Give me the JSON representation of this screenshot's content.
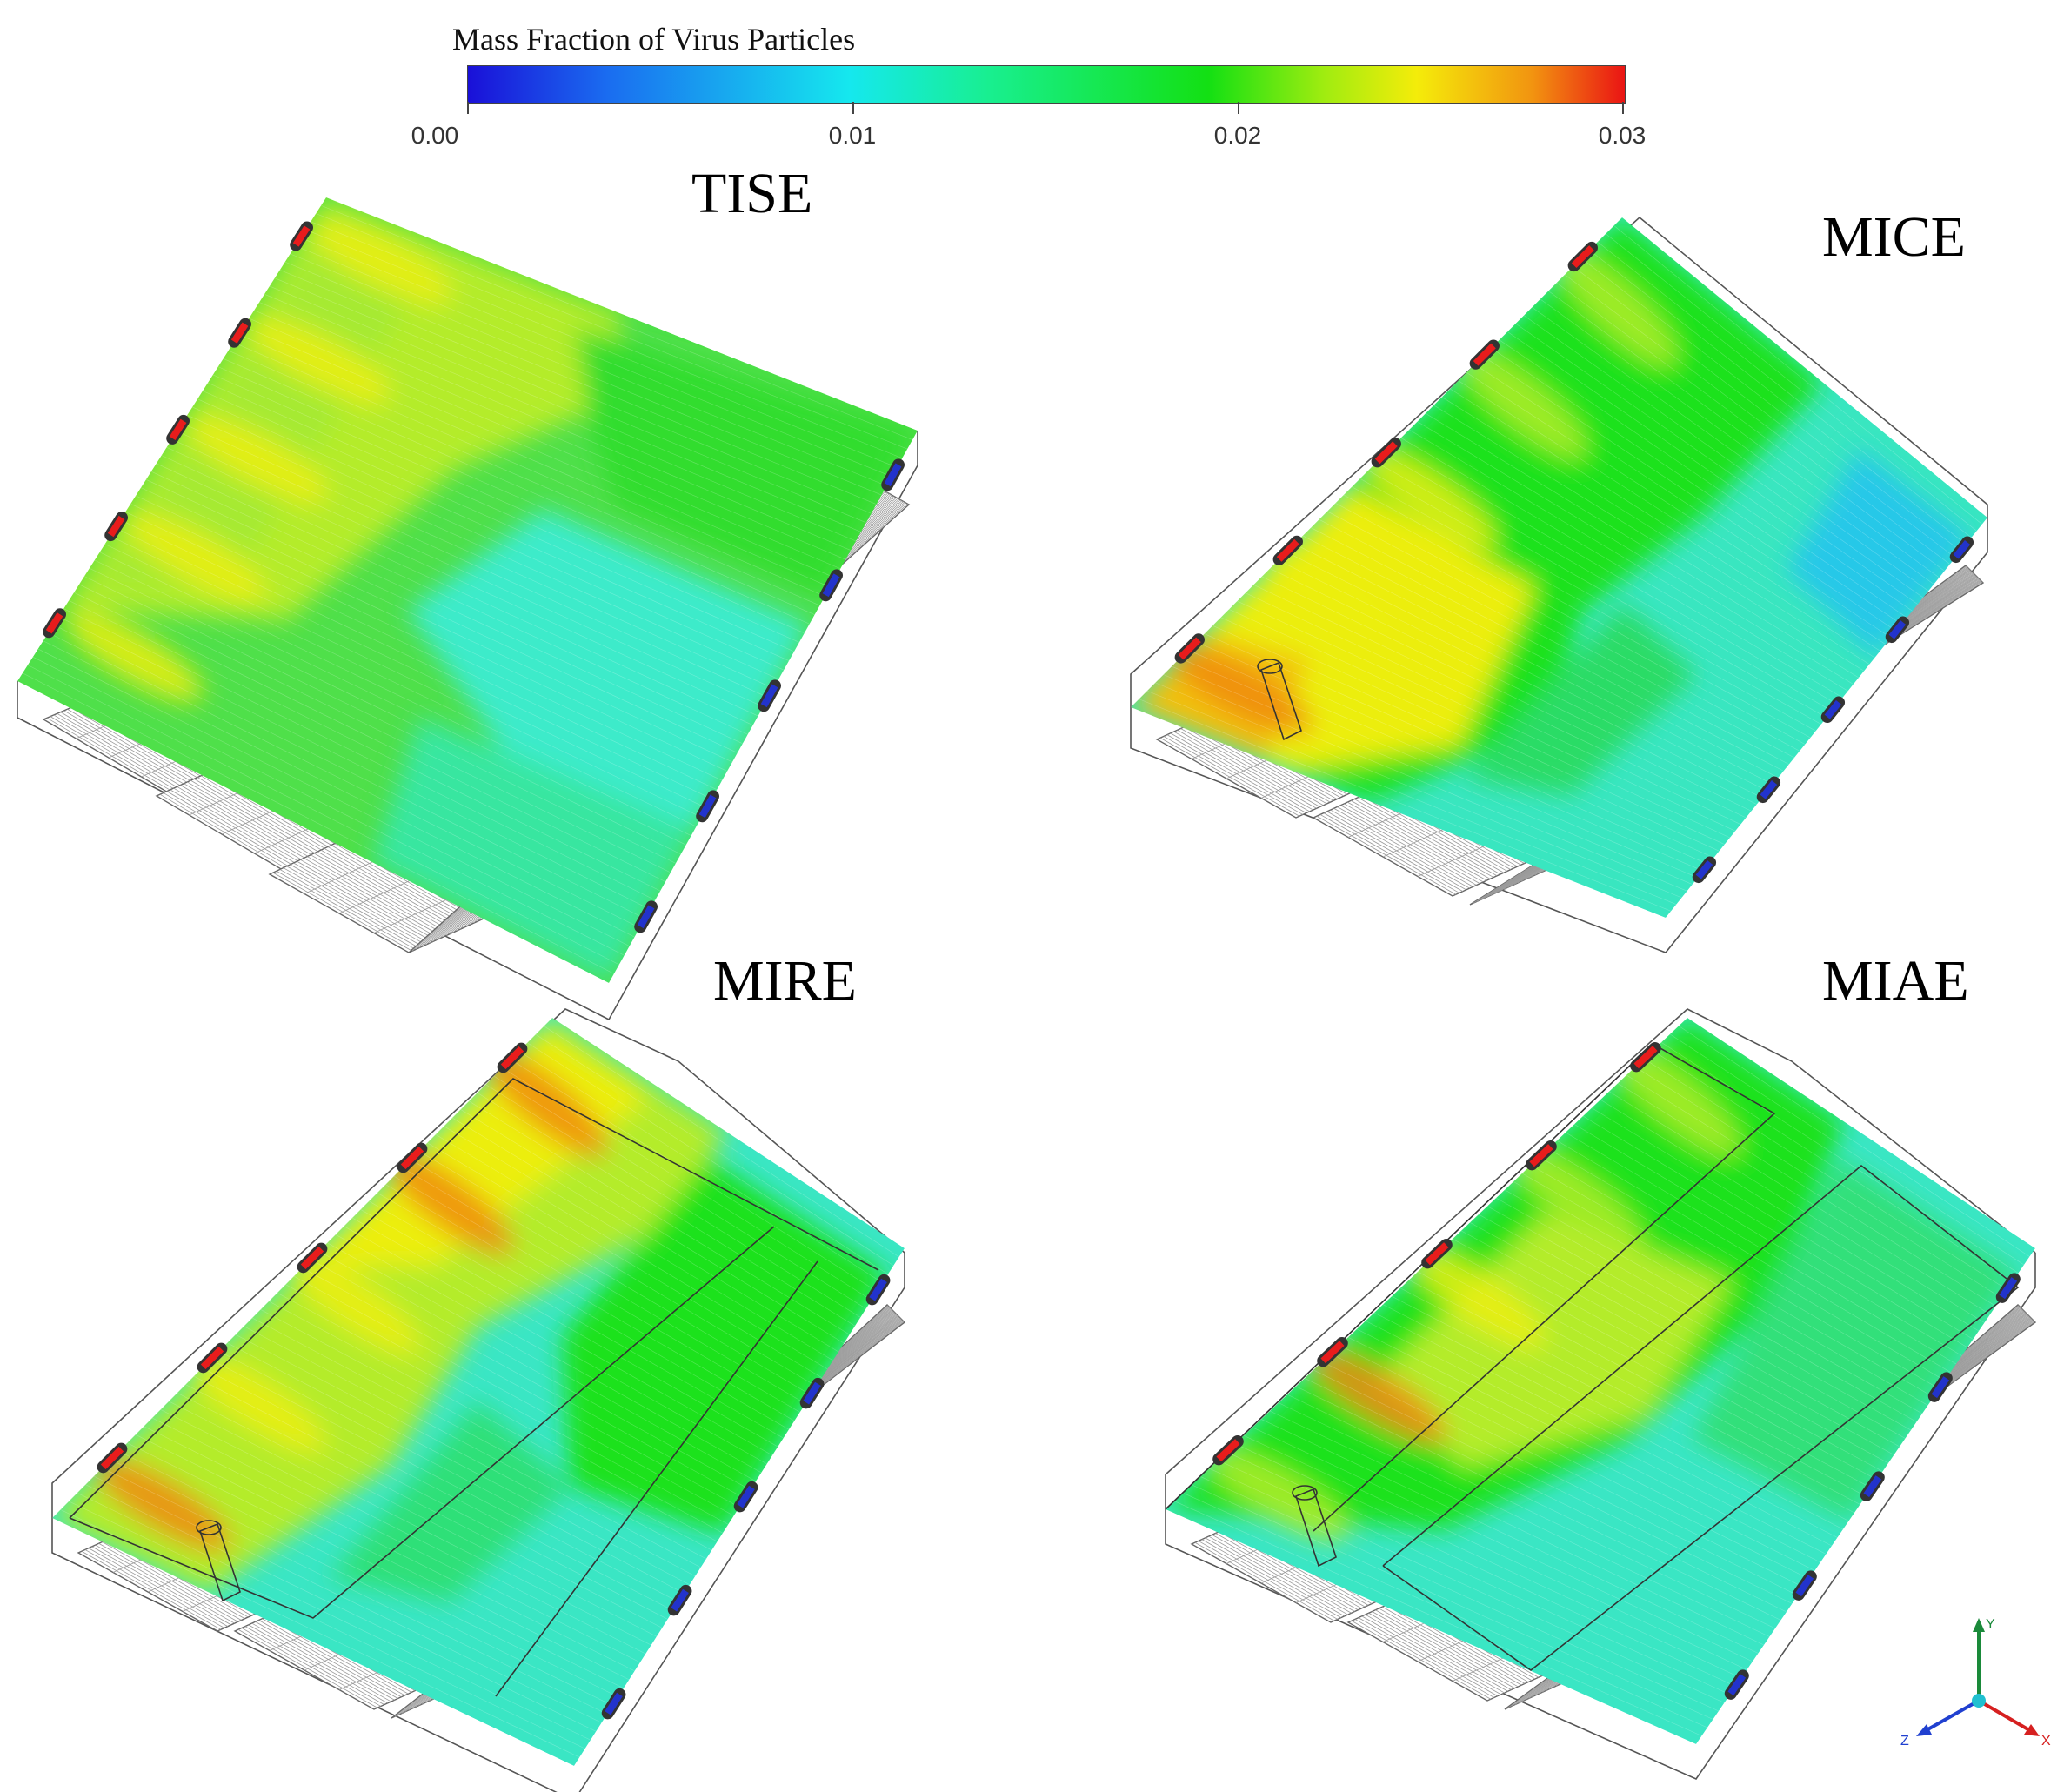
{
  "colorbar": {
    "title": "Mass Fraction of Virus Particles",
    "ticks": [
      "0.00",
      "0.01",
      "0.02",
      "0.03"
    ]
  },
  "panels": [
    {
      "id": "TISE",
      "title": "TISE"
    },
    {
      "id": "MICE",
      "title": "MICE"
    },
    {
      "id": "MIRE",
      "title": "MIRE"
    },
    {
      "id": "MIAE",
      "title": "MIAE"
    }
  ],
  "axes": {
    "x": "X",
    "y": "Y",
    "z": "Z"
  },
  "colors": {
    "cyan": "#3cecd8",
    "green": "#1ee21e",
    "yellow_green": "#b4ec2a",
    "yellow": "#ecee10",
    "orange": "#f08a10",
    "red": "#e81c1c",
    "inlet_blue": "#2233cc"
  }
}
